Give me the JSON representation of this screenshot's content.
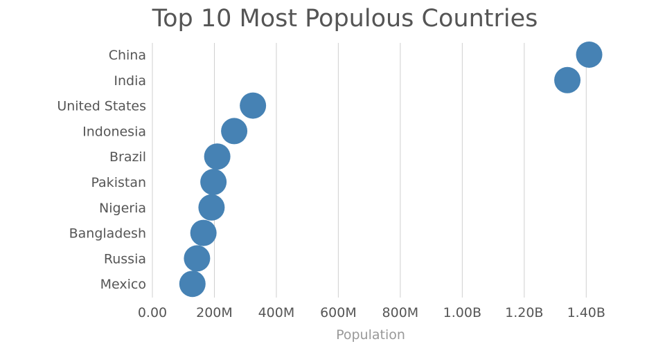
{
  "chart_data": {
    "type": "scatter",
    "title": "Top 10 Most Populous Countries",
    "xlabel": "Population",
    "ylabel": "",
    "categories": [
      "China",
      "India",
      "United States",
      "Indonesia",
      "Brazil",
      "Pakistan",
      "Nigeria",
      "Bangladesh",
      "Russia",
      "Mexico"
    ],
    "values": [
      1409517397,
      1339180127,
      324459463,
      263991379,
      209288278,
      197015955,
      190886311,
      164669751,
      143989754,
      129163276
    ],
    "xlim": [
      0,
      1500000000
    ],
    "xticks": [
      0,
      200000000,
      400000000,
      600000000,
      800000000,
      1000000000,
      1200000000,
      1400000000
    ],
    "xtick_labels": [
      "0.00",
      "200M",
      "400M",
      "600M",
      "800M",
      "1.00B",
      "1.20B",
      "1.40B"
    ],
    "grid": true,
    "marker_color": "#4682b4"
  }
}
